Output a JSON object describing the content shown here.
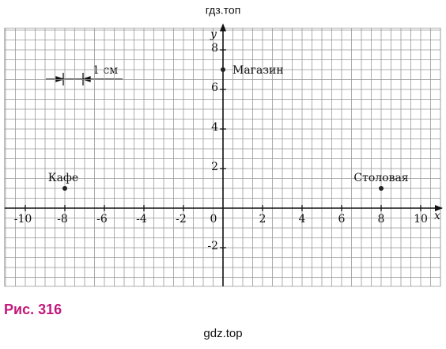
{
  "header": {
    "watermark": "гдз.топ"
  },
  "chart_data": {
    "type": "scatter",
    "x": [
      -8,
      0,
      8
    ],
    "values": [
      1,
      7,
      1
    ],
    "point_labels": [
      "Кафе",
      "Магазин",
      "Столовая"
    ],
    "x_label": "x",
    "y_label": "y",
    "origin": 0,
    "xlim": [
      -11.05,
      11
    ],
    "ylim": [
      -3.95,
      9.1
    ],
    "xticks": [
      -10,
      -8,
      -6,
      -4,
      -2,
      2,
      4,
      6,
      8,
      10
    ],
    "yticks": [
      -2,
      2,
      4,
      6,
      8
    ],
    "grid": true,
    "color": "#222222",
    "scale_annotation": "1 см"
  },
  "caption": "Рис. 316",
  "footer": {
    "watermark": "gdz.top"
  }
}
